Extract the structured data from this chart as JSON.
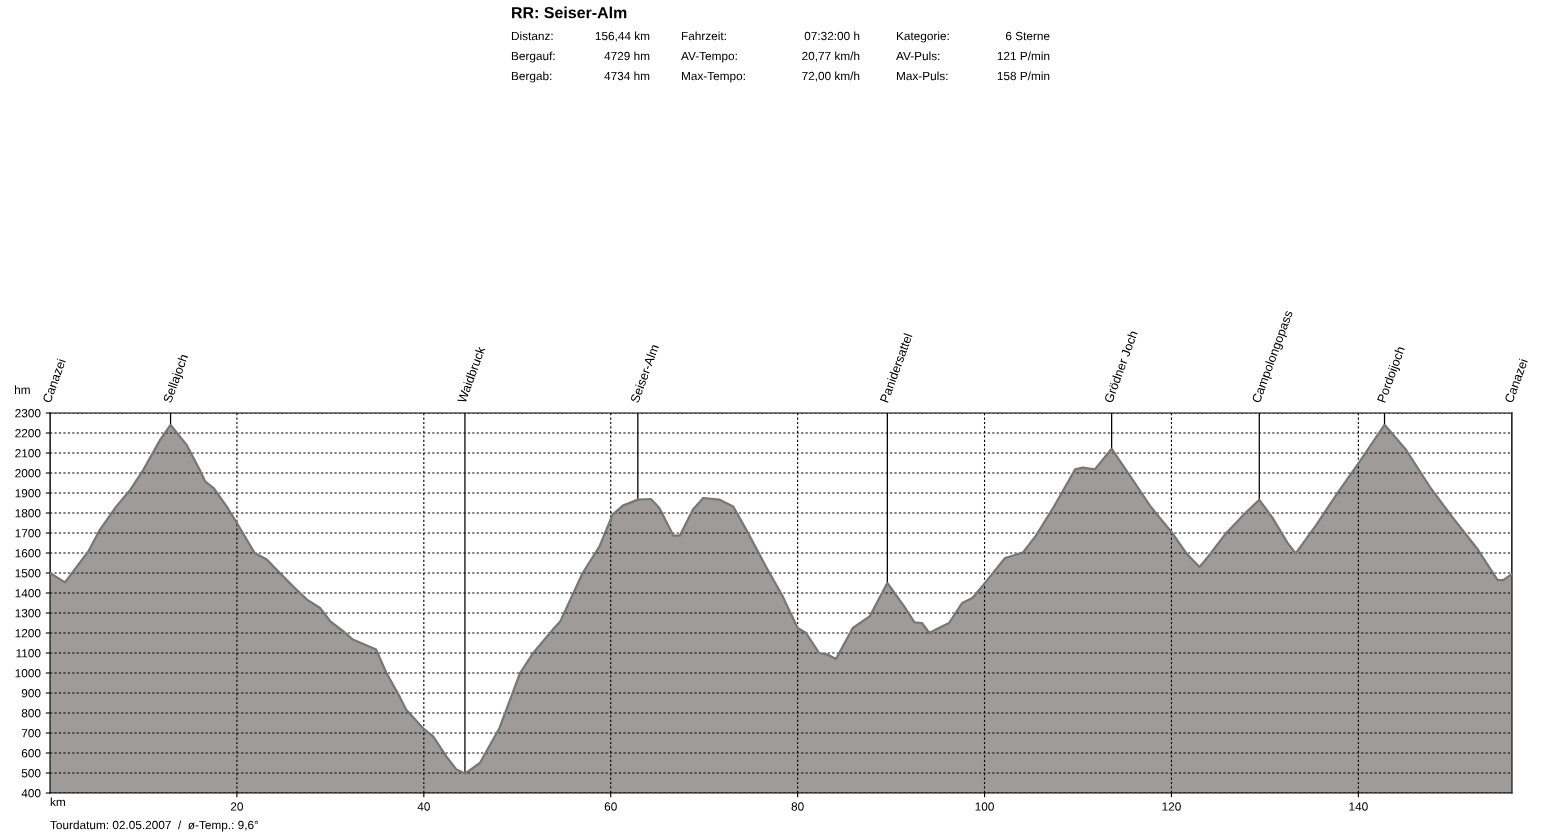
{
  "chart_data": {
    "type": "area",
    "title": "RR: Seiser-Alm",
    "xlabel": "km",
    "ylabel": "hm",
    "x": [
      0,
      1.6,
      4.1,
      5.35,
      7.1,
      8.6,
      10.0,
      11.8,
      12.9,
      14.6,
      16.0,
      16.6,
      17.5,
      18.9,
      20.0,
      21.9,
      23.2,
      24.6,
      26.0,
      27.5,
      28.9,
      30.0,
      31.4,
      32.4,
      34.9,
      36.0,
      37.4,
      38.1,
      39.9,
      41.0,
      42.4,
      43.5,
      44.4,
      46.0,
      48.1,
      50.3,
      51.7,
      53.8,
      54.6,
      57.0,
      58.8,
      60.2,
      61.3,
      62.9,
      64.3,
      65.2,
      66.7,
      67.4,
      68.8,
      69.9,
      71.6,
      73.1,
      74.5,
      76.6,
      78.4,
      80.0,
      80.9,
      82.3,
      83.2,
      84.1,
      85.9,
      87.7,
      89.6,
      91.4,
      92.5,
      93.3,
      94.1,
      94.8,
      96.2,
      97.6,
      98.7,
      99.9,
      102.2,
      104.1,
      105.5,
      107.4,
      109.7,
      110.5,
      111.8,
      113.6,
      115.5,
      117.8,
      120.0,
      121.6,
      123.0,
      123.9,
      125.8,
      127.8,
      129.4,
      130.8,
      132.4,
      133.3,
      135.5,
      137.8,
      140.1,
      142.8,
      145.1,
      147.8,
      150.1,
      152.8,
      154.9,
      155.5,
      156.44
    ],
    "series": [
      {
        "color": "#a09b9b",
        "values": [
          1500,
          1453,
          1608,
          1717,
          1833,
          1917,
          2017,
          2167,
          2240,
          2142,
          2017,
          1958,
          1925,
          1833,
          1750,
          1600,
          1567,
          1500,
          1433,
          1367,
          1325,
          1258,
          1208,
          1167,
          1117,
          1000,
          883,
          817,
          725,
          683,
          583,
          517,
          497,
          550,
          725,
          1000,
          1100,
          1217,
          1258,
          1500,
          1633,
          1792,
          1837,
          1867,
          1870,
          1825,
          1687,
          1687,
          1817,
          1875,
          1867,
          1833,
          1717,
          1533,
          1383,
          1225,
          1200,
          1100,
          1092,
          1070,
          1225,
          1283,
          1450,
          1333,
          1253,
          1250,
          1200,
          1217,
          1250,
          1350,
          1375,
          1442,
          1575,
          1602,
          1687,
          1830,
          2018,
          2027,
          2018,
          2121,
          1991,
          1830,
          1705,
          1598,
          1530,
          1580,
          1696,
          1795,
          1866,
          1777,
          1652,
          1598,
          1741,
          1902,
          2054,
          2241,
          2116,
          1920,
          1777,
          1616,
          1464,
          1464,
          1495
        ]
      }
    ],
    "xlim": [
      0,
      156.44
    ],
    "ylim": [
      400,
      2300
    ],
    "xticks": [
      20,
      40,
      60,
      80,
      100,
      120,
      140
    ],
    "yticks": [
      400,
      500,
      600,
      700,
      800,
      900,
      1000,
      1100,
      1200,
      1300,
      1400,
      1500,
      1600,
      1700,
      1800,
      1900,
      2000,
      2100,
      2200,
      2300
    ],
    "grid": true,
    "line_style": "solid",
    "ref_lines": [
      {
        "axis": "x",
        "value": 0,
        "label": "Canazei"
      },
      {
        "axis": "x",
        "value": 12.9,
        "label": "Sellajoch"
      },
      {
        "axis": "x",
        "value": 44.4,
        "label": "Waidbruck"
      },
      {
        "axis": "x",
        "value": 62.9,
        "label": "Seiser-Alm"
      },
      {
        "axis": "x",
        "value": 89.6,
        "label": "Panidersattel"
      },
      {
        "axis": "x",
        "value": 113.6,
        "label": "Grödner Joch"
      },
      {
        "axis": "x",
        "value": 129.4,
        "label": "Campolongopass"
      },
      {
        "axis": "x",
        "value": 142.8,
        "label": "Pordoijoch"
      },
      {
        "axis": "x",
        "value": 156.44,
        "label": "Canazei"
      }
    ],
    "annotations": [
      "Distanz:",
      "156,44 km",
      "Fahrzeit:",
      "07:32:00 h",
      "Kategorie:",
      "6 Sterne",
      "Bergauf:",
      "4729 hm",
      "AV-Tempo:",
      "20,77 km/h",
      "AV-Puls:",
      "121 P/min",
      "Bergab:",
      "4734 hm",
      "Max-Tempo:",
      "72,00 km/h",
      "Max-Puls:",
      "158 P/min",
      "Tourdatum: 02.05.2007  /  ø-Temp.: 9,6°"
    ]
  }
}
